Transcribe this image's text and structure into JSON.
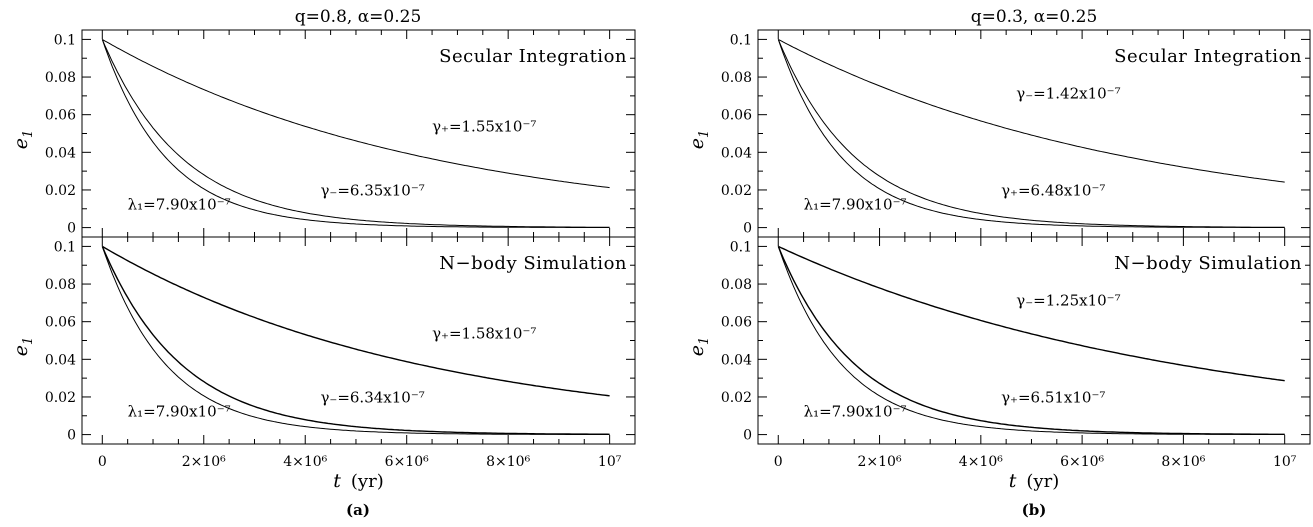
{
  "chart_data": [
    {
      "type": "line",
      "column_title": "q=0.8,  α=0.25",
      "caption": "(a)",
      "xlabel": "t",
      "xunit": "(yr)",
      "ylabel": "e1",
      "xlim": [
        -400000,
        10500000
      ],
      "ylim": [
        -0.005,
        0.105
      ],
      "xticks": [
        0,
        2000000,
        4000000,
        6000000,
        8000000,
        10000000
      ],
      "xtick_labels": [
        "0",
        "2×10⁶",
        "4×10⁶",
        "6×10⁶",
        "8×10⁶",
        "10⁷"
      ],
      "yticks": [
        0,
        0.02,
        0.04,
        0.06,
        0.08,
        0.1
      ],
      "ytick_labels": [
        "0",
        "0.02",
        "0.04",
        "0.06",
        "0.08",
        "0.1"
      ],
      "panels": [
        {
          "label": "Secular Integration",
          "e0": 0.1,
          "series": [
            {
              "rate": 1.55e-07,
              "label": "γ₊=1.55x10⁻⁷",
              "label_at": [
                6500000,
                0.051
              ]
            },
            {
              "rate": 6.35e-07,
              "label": "γ₋=6.35x10⁻⁷",
              "label_at": [
                4300000,
                0.017
              ]
            },
            {
              "rate": 7.9e-07,
              "label": "λ₁=7.90x10⁻⁷",
              "label_at": [
                500000,
                0.0095
              ]
            }
          ]
        },
        {
          "label": "N−body Simulation",
          "e0": 0.1,
          "series": [
            {
              "rate": 1.58e-07,
              "label": "γ₊=1.58x10⁻⁷",
              "label_at": [
                6500000,
                0.051
              ]
            },
            {
              "rate": 6.34e-07,
              "label": "γ₋=6.34x10⁻⁷",
              "label_at": [
                4300000,
                0.017
              ]
            },
            {
              "rate": 7.9e-07,
              "label": "λ₁=7.90x10⁻⁷",
              "label_at": [
                500000,
                0.0095
              ]
            }
          ]
        }
      ]
    },
    {
      "type": "line",
      "column_title": "q=0.3,  α=0.25",
      "caption": "(b)",
      "xlabel": "t",
      "xunit": "(yr)",
      "ylabel": "e1",
      "xlim": [
        -400000,
        10500000
      ],
      "ylim": [
        -0.005,
        0.105
      ],
      "xticks": [
        0,
        2000000,
        4000000,
        6000000,
        8000000,
        10000000
      ],
      "xtick_labels": [
        "0",
        "2×10⁶",
        "4×10⁶",
        "6×10⁶",
        "8×10⁶",
        "10⁷"
      ],
      "yticks": [
        0,
        0.02,
        0.04,
        0.06,
        0.08,
        0.1
      ],
      "ytick_labels": [
        "0",
        "0.02",
        "0.04",
        "0.06",
        "0.08",
        "0.1"
      ],
      "panels": [
        {
          "label": "Secular Integration",
          "e0": 0.1,
          "series": [
            {
              "rate": 1.42e-07,
              "label": "γ₋=1.42x10⁻⁷",
              "label_at": [
                4700000,
                0.0685
              ]
            },
            {
              "rate": 6.48e-07,
              "label": "γ₊=6.48x10⁻⁷",
              "label_at": [
                4400000,
                0.017
              ]
            },
            {
              "rate": 7.9e-07,
              "label": "λ₁=7.90x10⁻⁷",
              "label_at": [
                500000,
                0.0095
              ]
            }
          ]
        },
        {
          "label": "N−body Simulation",
          "e0": 0.1,
          "series": [
            {
              "rate": 1.25e-07,
              "label": "γ₋=1.25x10⁻⁷",
              "label_at": [
                4700000,
                0.0685
              ]
            },
            {
              "rate": 6.51e-07,
              "label": "γ₊=6.51x10⁻⁷",
              "label_at": [
                4400000,
                0.017
              ]
            },
            {
              "rate": 7.9e-07,
              "label": "λ₁=7.90x10⁻⁷",
              "label_at": [
                500000,
                0.0095
              ]
            }
          ]
        }
      ]
    }
  ]
}
